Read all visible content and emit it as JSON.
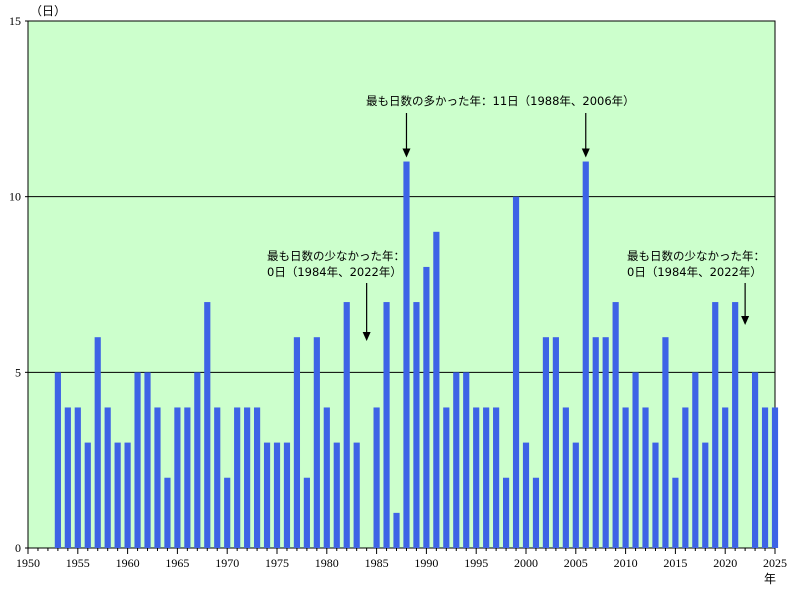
{
  "chart_data": {
    "type": "bar",
    "y_unit_label": "（日）",
    "x_unit_label": "年",
    "xlim": [
      1950,
      2025
    ],
    "ylim": [
      0,
      15
    ],
    "x_ticks": [
      "1950",
      "1955",
      "1960",
      "1965",
      "1970",
      "1975",
      "1980",
      "1985",
      "1990",
      "1995",
      "2000",
      "2005",
      "2010",
      "2015",
      "2020",
      "2025"
    ],
    "y_ticks": [
      "0",
      "5",
      "10",
      "15"
    ],
    "grid": true,
    "colors": {
      "plot_background": "#ccffcc",
      "bar": "#3d63e6",
      "grid": "#000000"
    },
    "years": [
      1953,
      1954,
      1955,
      1956,
      1957,
      1958,
      1959,
      1960,
      1961,
      1962,
      1963,
      1964,
      1965,
      1966,
      1967,
      1968,
      1969,
      1970,
      1971,
      1972,
      1973,
      1974,
      1975,
      1976,
      1977,
      1978,
      1979,
      1980,
      1981,
      1982,
      1983,
      1984,
      1985,
      1986,
      1987,
      1988,
      1989,
      1990,
      1991,
      1992,
      1993,
      1994,
      1995,
      1996,
      1997,
      1998,
      1999,
      2000,
      2001,
      2002,
      2003,
      2004,
      2005,
      2006,
      2007,
      2008,
      2009,
      2010,
      2011,
      2012,
      2013,
      2014,
      2015,
      2016,
      2017,
      2018,
      2019,
      2020,
      2021,
      2022,
      2023,
      2024,
      2025
    ],
    "values": [
      5,
      4,
      4,
      3,
      6,
      4,
      3,
      3,
      5,
      5,
      4,
      2,
      4,
      4,
      5,
      7,
      4,
      2,
      4,
      4,
      4,
      3,
      3,
      3,
      6,
      2,
      6,
      4,
      3,
      7,
      3,
      0,
      4,
      7,
      1,
      11,
      7,
      8,
      9,
      4,
      5,
      5,
      4,
      4,
      4,
      2,
      10,
      3,
      2,
      6,
      6,
      4,
      3,
      11,
      6,
      6,
      7,
      4,
      5,
      4,
      3,
      6,
      2,
      4,
      5,
      3,
      7,
      4,
      7,
      0,
      5,
      4,
      4
    ],
    "annotations": [
      {
        "lines": [
          "最も日数の多かった年：11日（1988年、2006年）"
        ],
        "arrow_years": [
          1988,
          2006
        ]
      },
      {
        "lines": [
          "最も日数の少なかった年：",
          "0日（1984年、2022年）"
        ],
        "arrow_years": [
          1984
        ]
      },
      {
        "lines": [
          "最も日数の少なかった年：",
          "0日（1984年、2022年）"
        ],
        "arrow_years": [
          2022
        ]
      }
    ]
  }
}
